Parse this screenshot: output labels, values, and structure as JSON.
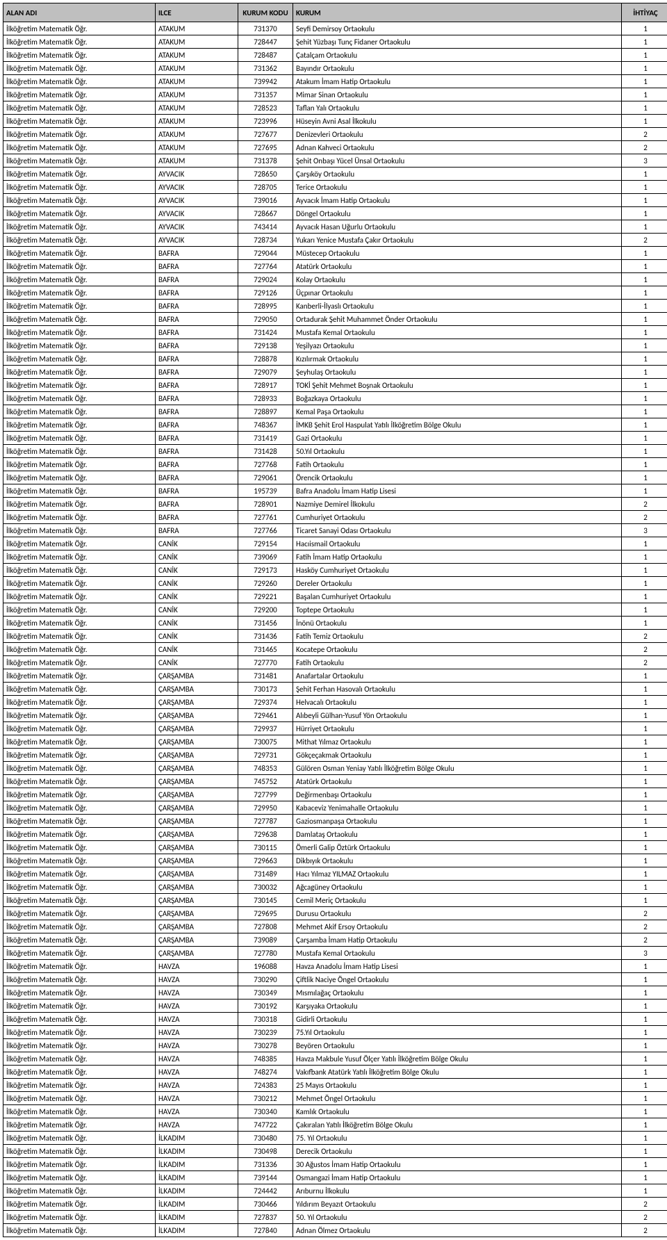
{
  "columns": [
    "ALAN ADI",
    "ILCE",
    "KURUM KODU",
    "KURUM",
    "İHTİYAÇ"
  ],
  "alan": "İlköğretim Matematik Öğr.",
  "rows": [
    [
      "ATAKUM",
      "731370",
      "Seyfi Demirsoy Ortaokulu",
      "1"
    ],
    [
      "ATAKUM",
      "728447",
      "Şehit Yüzbaşı Tunç Fidaner Ortaokulu",
      "1"
    ],
    [
      "ATAKUM",
      "728487",
      "Çatalçam Ortaokulu",
      "1"
    ],
    [
      "ATAKUM",
      "731362",
      "Bayındır Ortaokulu",
      "1"
    ],
    [
      "ATAKUM",
      "739942",
      "Atakum İmam Hatip Ortaokulu",
      "1"
    ],
    [
      "ATAKUM",
      "731357",
      "Mimar Sinan Ortaokulu",
      "1"
    ],
    [
      "ATAKUM",
      "728523",
      "Taflan Yalı Ortaokulu",
      "1"
    ],
    [
      "ATAKUM",
      "723996",
      "Hüseyin Avni Asal İlkokulu",
      "1"
    ],
    [
      "ATAKUM",
      "727677",
      "Denizevleri Ortaokulu",
      "2"
    ],
    [
      "ATAKUM",
      "727695",
      "Adnan Kahveci Ortaokulu",
      "2"
    ],
    [
      "ATAKUM",
      "731378",
      "Şehit Onbaşı Yücel Ünsal Ortaokulu",
      "3"
    ],
    [
      "AYVACIK",
      "728650",
      "Çarşıköy Ortaokulu",
      "1"
    ],
    [
      "AYVACIK",
      "728705",
      "Terice Ortaokulu",
      "1"
    ],
    [
      "AYVACIK",
      "739016",
      "Ayvacık İmam Hatip Ortaokulu",
      "1"
    ],
    [
      "AYVACIK",
      "728667",
      "Döngel Ortaokulu",
      "1"
    ],
    [
      "AYVACIK",
      "743414",
      "Ayvacık Hasan Uğurlu Ortaokulu",
      "1"
    ],
    [
      "AYVACIK",
      "728734",
      "Yukarı Yenice Mustafa Çakır Ortaokulu",
      "2"
    ],
    [
      "BAFRA",
      "729044",
      "Müstecep Ortaokulu",
      "1"
    ],
    [
      "BAFRA",
      "727764",
      "Atatürk Ortaokulu",
      "1"
    ],
    [
      "BAFRA",
      "729024",
      "Kolay Ortaokulu",
      "1"
    ],
    [
      "BAFRA",
      "729126",
      "Üçpınar Ortaokulu",
      "1"
    ],
    [
      "BAFRA",
      "728995",
      "Kanberli-İlyaslı Ortaokulu",
      "1"
    ],
    [
      "BAFRA",
      "729050",
      "Ortadurak Şehit Muhammet Önder Ortaokulu",
      "1"
    ],
    [
      "BAFRA",
      "731424",
      "Mustafa Kemal Ortaokulu",
      "1"
    ],
    [
      "BAFRA",
      "729138",
      "Yeşilyazı Ortaokulu",
      "1"
    ],
    [
      "BAFRA",
      "728878",
      "Kızılırmak Ortaokulu",
      "1"
    ],
    [
      "BAFRA",
      "729079",
      "Şeyhulaş Ortaokulu",
      "1"
    ],
    [
      "BAFRA",
      "728917",
      "TOKİ Şehit Mehmet Boşnak Ortaokulu",
      "1"
    ],
    [
      "BAFRA",
      "728933",
      "Boğazkaya Ortaokulu",
      "1"
    ],
    [
      "BAFRA",
      "728897",
      "Kemal Paşa Ortaokulu",
      "1"
    ],
    [
      "BAFRA",
      "748367",
      "İMKB Şehit Erol Haspulat Yatılı İlköğretim Bölge Okulu",
      "1"
    ],
    [
      "BAFRA",
      "731419",
      "Gazi Ortaokulu",
      "1"
    ],
    [
      "BAFRA",
      "731428",
      "50.Yıl Ortaokulu",
      "1"
    ],
    [
      "BAFRA",
      "727768",
      "Fatih Ortaokulu",
      "1"
    ],
    [
      "BAFRA",
      "729061",
      "Örencik Ortaokulu",
      "1"
    ],
    [
      "BAFRA",
      "195739",
      "Bafra Anadolu İmam Hatip Lisesi",
      "1"
    ],
    [
      "BAFRA",
      "728901",
      "Nazmiye Demirel İlkokulu",
      "2"
    ],
    [
      "BAFRA",
      "727761",
      "Cumhuriyet Ortaokulu",
      "2"
    ],
    [
      "BAFRA",
      "727766",
      "Ticaret Sanayi Odası Ortaokulu",
      "3"
    ],
    [
      "CANİK",
      "729154",
      "Hacıismail Ortaokulu",
      "1"
    ],
    [
      "CANİK",
      "739069",
      "Fatih İmam Hatip Ortaokulu",
      "1"
    ],
    [
      "CANİK",
      "729173",
      "Hasköy Cumhuriyet Ortaokulu",
      "1"
    ],
    [
      "CANİK",
      "729260",
      "Dereler Ortaokulu",
      "1"
    ],
    [
      "CANİK",
      "729221",
      "Başalan Cumhuriyet Ortaokulu",
      "1"
    ],
    [
      "CANİK",
      "729200",
      "Toptepe Ortaokulu",
      "1"
    ],
    [
      "CANİK",
      "731456",
      "İnönü Ortaokulu",
      "1"
    ],
    [
      "CANİK",
      "731436",
      "Fatih Temiz Ortaokulu",
      "2"
    ],
    [
      "CANİK",
      "731465",
      "Kocatepe Ortaokulu",
      "2"
    ],
    [
      "CANİK",
      "727770",
      "Fatih Ortaokulu",
      "2"
    ],
    [
      "ÇARŞAMBA",
      "731481",
      "Anafartalar Ortaokulu",
      "1"
    ],
    [
      "ÇARŞAMBA",
      "730173",
      "Şehit Ferhan Hasovalı Ortaokulu",
      "1"
    ],
    [
      "ÇARŞAMBA",
      "729374",
      "Helvacalı Ortaokulu",
      "1"
    ],
    [
      "ÇARŞAMBA",
      "729461",
      "Alıbeyli Gülhan-Yusuf Yön Ortaokulu",
      "1"
    ],
    [
      "ÇARŞAMBA",
      "729937",
      "Hürriyet Ortaokulu",
      "1"
    ],
    [
      "ÇARŞAMBA",
      "730075",
      "Mithat Yılmaz Ortaokulu",
      "1"
    ],
    [
      "ÇARŞAMBA",
      "729731",
      "Gökçeçakmak Ortaokulu",
      "1"
    ],
    [
      "ÇARŞAMBA",
      "748353",
      "Gülören Osman Yeniay Yatılı İlköğretim Bölge Okulu",
      "1"
    ],
    [
      "ÇARŞAMBA",
      "745752",
      "Atatürk Ortaokulu",
      "1"
    ],
    [
      "ÇARŞAMBA",
      "727799",
      "Değirmenbaşı Ortaokulu",
      "1"
    ],
    [
      "ÇARŞAMBA",
      "729950",
      "Kabaceviz Yenimahalle Ortaokulu",
      "1"
    ],
    [
      "ÇARŞAMBA",
      "727787",
      "Gaziosmanpaşa Ortaokulu",
      "1"
    ],
    [
      "ÇARŞAMBA",
      "729638",
      "Damlataş Ortaokulu",
      "1"
    ],
    [
      "ÇARŞAMBA",
      "730115",
      "Ömerli Galip Öztürk Ortaokulu",
      "1"
    ],
    [
      "ÇARŞAMBA",
      "729663",
      "Dikbıyık Ortaokulu",
      "1"
    ],
    [
      "ÇARŞAMBA",
      "731489",
      "Hacı Yılmaz YILMAZ Ortaokulu",
      "1"
    ],
    [
      "ÇARŞAMBA",
      "730032",
      "Ağcagüney Ortaokulu",
      "1"
    ],
    [
      "ÇARŞAMBA",
      "730145",
      "Cemil Meriç Ortaokulu",
      "1"
    ],
    [
      "ÇARŞAMBA",
      "729695",
      "Durusu Ortaokulu",
      "2"
    ],
    [
      "ÇARŞAMBA",
      "727808",
      "Mehmet Akif Ersoy Ortaokulu",
      "2"
    ],
    [
      "ÇARŞAMBA",
      "739089",
      "Çarşamba İmam Hatip Ortaokulu",
      "2"
    ],
    [
      "ÇARŞAMBA",
      "727780",
      "Mustafa Kemal Ortaokulu",
      "3"
    ],
    [
      "HAVZA",
      "196088",
      "Havza Anadolu İmam Hatip Lisesi",
      "1"
    ],
    [
      "HAVZA",
      "730290",
      "Çiftlik Naciye Öngel Ortaokulu",
      "1"
    ],
    [
      "HAVZA",
      "730349",
      "Mısmılağaç Ortaokulu",
      "1"
    ],
    [
      "HAVZA",
      "730192",
      "Karşıyaka Ortaokulu",
      "1"
    ],
    [
      "HAVZA",
      "730318",
      "Gidirli Ortaokulu",
      "1"
    ],
    [
      "HAVZA",
      "730239",
      "75.Yıl Ortaokulu",
      "1"
    ],
    [
      "HAVZA",
      "730278",
      "Beyören Ortaokulu",
      "1"
    ],
    [
      "HAVZA",
      "748385",
      "Havza Makbule Yusuf Ölçer Yatılı İlköğretim Bölge Okulu",
      "1"
    ],
    [
      "HAVZA",
      "748274",
      "Vakıfbank Atatürk Yatılı İlköğretim Bölge Okulu",
      "1"
    ],
    [
      "HAVZA",
      "724383",
      "25 Mayıs Ortaokulu",
      "1"
    ],
    [
      "HAVZA",
      "730212",
      "Mehmet Öngel Ortaokulu",
      "1"
    ],
    [
      "HAVZA",
      "730340",
      "Kamlık Ortaokulu",
      "1"
    ],
    [
      "HAVZA",
      "747722",
      "Çakıralan Yatılı İlköğretim Bölge Okulu",
      "1"
    ],
    [
      "İLKADIM",
      "730480",
      "75. Yıl Ortaokulu",
      "1"
    ],
    [
      "İLKADIM",
      "730498",
      "Derecik Ortaokulu",
      "1"
    ],
    [
      "İLKADIM",
      "731336",
      "30 Ağustos İmam Hatip Ortaokulu",
      "1"
    ],
    [
      "İLKADIM",
      "739144",
      "Osmangazi İmam Hatip Ortaokulu",
      "1"
    ],
    [
      "İLKADIM",
      "724442",
      "Arıburnu İlkokulu",
      "1"
    ],
    [
      "İLKADIM",
      "730466",
      "Yıldırım Beyazıt Ortaokulu",
      "2"
    ],
    [
      "İLKADIM",
      "727837",
      "50. Yıl Ortaokulu",
      "2"
    ],
    [
      "İLKADIM",
      "727840",
      "Adnan Ölmez Ortaokulu",
      "2"
    ]
  ]
}
